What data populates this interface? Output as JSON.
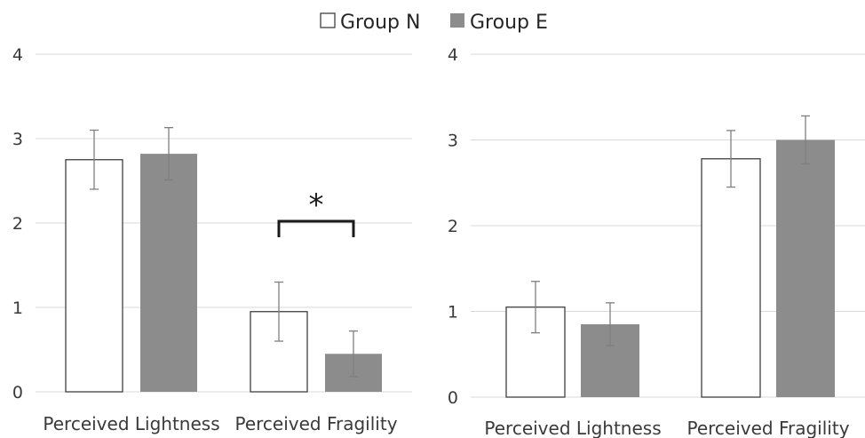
{
  "legend": {
    "items": [
      {
        "label": "Group N",
        "color": "#ffffff"
      },
      {
        "label": "Group E",
        "color": "#8c8c8c"
      }
    ]
  },
  "chart_data": [
    {
      "type": "bar",
      "categories": [
        "Perceived Lightness",
        "Perceived Fragility"
      ],
      "series": [
        {
          "name": "Group N",
          "color": "#ffffff",
          "values": [
            2.75,
            0.95
          ],
          "errors": [
            0.35,
            0.35
          ]
        },
        {
          "name": "Group E",
          "color": "#8c8c8c",
          "values": [
            2.82,
            0.45
          ],
          "errors": [
            0.31,
            0.27
          ]
        }
      ],
      "ylim": [
        0,
        4
      ],
      "yticks": [
        "0",
        "1",
        "2",
        "3",
        "4"
      ],
      "grid": true,
      "legend_position": "top-center",
      "annotations": [
        {
          "text": "*",
          "category": "Perceived Fragility"
        }
      ]
    },
    {
      "type": "bar",
      "categories": [
        "Perceived Lightness",
        "Perceived Fragility"
      ],
      "series": [
        {
          "name": "Group N",
          "color": "#ffffff",
          "values": [
            1.05,
            2.78
          ],
          "errors": [
            0.3,
            0.33
          ]
        },
        {
          "name": "Group E",
          "color": "#8c8c8c",
          "values": [
            0.85,
            3.0
          ],
          "errors": [
            0.25,
            0.28
          ]
        }
      ],
      "ylim": [
        0,
        4
      ],
      "yticks": [
        "0",
        "1",
        "2",
        "3",
        "4"
      ],
      "grid": true
    }
  ]
}
